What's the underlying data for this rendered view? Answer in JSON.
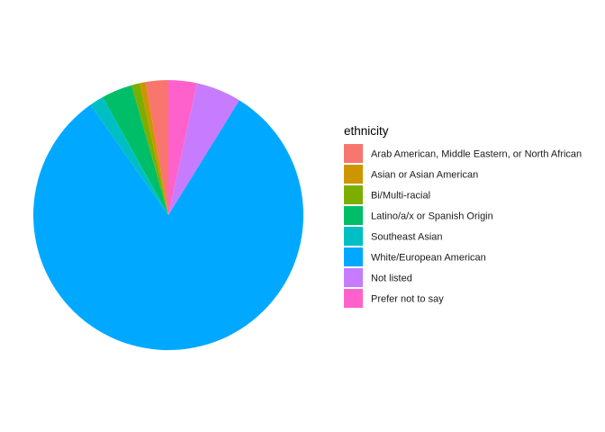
{
  "chart_data": {
    "type": "pie",
    "legend": {
      "title": "ethnicity",
      "position": "right"
    },
    "series": [
      {
        "name": "Arab American, Middle Eastern, or North African",
        "value": 2.7,
        "color": "#F8766D"
      },
      {
        "name": "Asian or Asian American",
        "value": 0.7,
        "color": "#CD9600"
      },
      {
        "name": "Bi/Multi-racial",
        "value": 1.0,
        "color": "#7CAE00"
      },
      {
        "name": "Latino/a/x or Spanish Origin",
        "value": 3.7,
        "color": "#00BE67"
      },
      {
        "name": "Southeast Asian",
        "value": 1.7,
        "color": "#00BFC4"
      },
      {
        "name": "White/European American",
        "value": 81.4,
        "color": "#00A9FF"
      },
      {
        "name": "Not listed",
        "value": 5.4,
        "color": "#C77CFF"
      },
      {
        "name": "Prefer not to say",
        "value": 3.4,
        "color": "#FF61CC"
      }
    ]
  }
}
